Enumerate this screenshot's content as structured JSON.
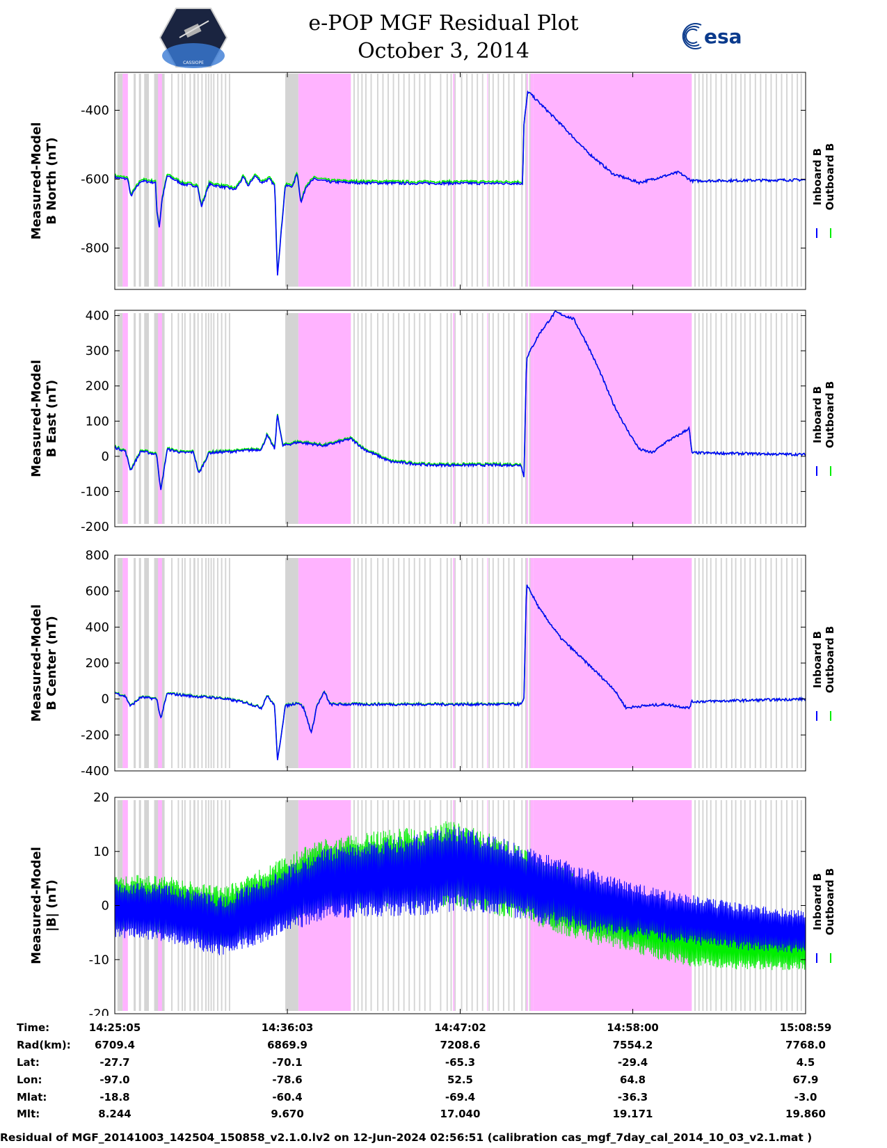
{
  "title": {
    "line1": "e-POP MGF Residual Plot",
    "line2": "October 3, 2014"
  },
  "logos": {
    "left": "cassiope-logo",
    "left_text": "CASSIOPE",
    "right": "esa-logo",
    "right_text": "esa"
  },
  "colors": {
    "inboard": "#0000ff",
    "outboard": "#00ee00",
    "gray_band": "#d4d4d4",
    "pink_band": "#ffb3ff"
  },
  "legend": {
    "inboard": "Inboard B",
    "outboard": "Outboard B"
  },
  "time_axis": {
    "start_s": 0,
    "end_s": 2634,
    "ticks_s": [
      0,
      658,
      1317,
      1975,
      2634
    ]
  },
  "bands": {
    "gray": [
      [
        10,
        30
      ],
      [
        72,
        80
      ],
      [
        92,
        100
      ],
      [
        112,
        130
      ],
      [
        150,
        190
      ],
      [
        215,
        220
      ],
      [
        240,
        245
      ],
      [
        255,
        260
      ],
      [
        265,
        270
      ],
      [
        285,
        290
      ],
      [
        300,
        307
      ],
      [
        315,
        320
      ],
      [
        330,
        335
      ],
      [
        345,
        350
      ],
      [
        355,
        360
      ],
      [
        365,
        370
      ],
      [
        375,
        380
      ],
      [
        390,
        395
      ],
      [
        405,
        410
      ],
      [
        420,
        425
      ],
      [
        435,
        440
      ],
      [
        650,
        700
      ],
      [
        720,
        725
      ],
      [
        740,
        745
      ],
      [
        760,
        765
      ],
      [
        780,
        785
      ],
      [
        800,
        805
      ],
      [
        820,
        825
      ],
      [
        830,
        835
      ],
      [
        845,
        850
      ],
      [
        865,
        870
      ],
      [
        880,
        885
      ],
      [
        895,
        900
      ],
      [
        910,
        915
      ],
      [
        925,
        930
      ],
      [
        940,
        945
      ],
      [
        955,
        960
      ],
      [
        975,
        980
      ],
      [
        1000,
        1005
      ],
      [
        1020,
        1025
      ],
      [
        1040,
        1045
      ],
      [
        1060,
        1065
      ],
      [
        1080,
        1085
      ],
      [
        1100,
        1105
      ],
      [
        1120,
        1125
      ],
      [
        1140,
        1145
      ],
      [
        1160,
        1165
      ],
      [
        1180,
        1185
      ],
      [
        1200,
        1205
      ],
      [
        1240,
        1245
      ],
      [
        1265,
        1270
      ],
      [
        1280,
        1285
      ],
      [
        1295,
        1300
      ],
      [
        1320,
        1325
      ],
      [
        1340,
        1345
      ],
      [
        1360,
        1365
      ],
      [
        1380,
        1385
      ],
      [
        1400,
        1405
      ],
      [
        1425,
        1430
      ],
      [
        1440,
        1445
      ],
      [
        1460,
        1465
      ],
      [
        1480,
        1485
      ],
      [
        1500,
        1505
      ],
      [
        1520,
        1525
      ],
      [
        1550,
        1555
      ],
      [
        1565,
        1570
      ],
      [
        1580,
        1585
      ],
      [
        2190,
        2198
      ],
      [
        2210,
        2215
      ],
      [
        2225,
        2230
      ],
      [
        2240,
        2245
      ],
      [
        2255,
        2260
      ],
      [
        2270,
        2275
      ],
      [
        2290,
        2295
      ],
      [
        2310,
        2315
      ],
      [
        2330,
        2335
      ],
      [
        2350,
        2355
      ],
      [
        2365,
        2370
      ],
      [
        2385,
        2390
      ],
      [
        2400,
        2405
      ],
      [
        2420,
        2425
      ],
      [
        2440,
        2445
      ],
      [
        2460,
        2465
      ],
      [
        2480,
        2485
      ],
      [
        2500,
        2505
      ],
      [
        2520,
        2525
      ],
      [
        2540,
        2545
      ],
      [
        2560,
        2565
      ],
      [
        2580,
        2585
      ],
      [
        2600,
        2605
      ],
      [
        2615,
        2620
      ]
    ],
    "pink": [
      [
        30,
        50
      ],
      [
        165,
        180
      ],
      [
        700,
        760
      ],
      [
        760,
        900
      ],
      [
        1290,
        1295
      ],
      [
        1420,
        1423
      ],
      [
        1570,
        1575
      ],
      [
        1585,
        1595
      ],
      [
        1595,
        2200
      ]
    ]
  },
  "series_meta": {
    "seed": 7
  },
  "chart_data": [
    {
      "type": "line",
      "ylabel": "Measured-Model B North (nT)",
      "ylabel_lines": [
        "Measured-Model",
        "B North (nT)"
      ],
      "ylim": [
        -920,
        -290
      ],
      "yticks": [
        -400,
        -600,
        -800
      ],
      "series": [
        {
          "name": "Inboard B"
        },
        {
          "name": "Outboard B"
        }
      ],
      "key_points": [
        [
          0,
          -595
        ],
        [
          50,
          -600
        ],
        [
          60,
          -650
        ],
        [
          100,
          -605
        ],
        [
          155,
          -610
        ],
        [
          160,
          -690
        ],
        [
          170,
          -740
        ],
        [
          180,
          -660
        ],
        [
          200,
          -590
        ],
        [
          260,
          -615
        ],
        [
          315,
          -620
        ],
        [
          330,
          -680
        ],
        [
          360,
          -615
        ],
        [
          460,
          -630
        ],
        [
          490,
          -595
        ],
        [
          510,
          -620
        ],
        [
          525,
          -600
        ],
        [
          535,
          -590
        ],
        [
          560,
          -610
        ],
        [
          590,
          -600
        ],
        [
          610,
          -620
        ],
        [
          620,
          -880
        ],
        [
          650,
          -620
        ],
        [
          680,
          -620
        ],
        [
          695,
          -580
        ],
        [
          710,
          -670
        ],
        [
          730,
          -620
        ],
        [
          760,
          -600
        ],
        [
          820,
          -608
        ],
        [
          900,
          -610
        ],
        [
          1100,
          -612
        ],
        [
          1300,
          -612
        ],
        [
          1555,
          -612
        ],
        [
          1560,
          -440
        ],
        [
          1575,
          -345
        ],
        [
          1700,
          -440
        ],
        [
          1800,
          -520
        ],
        [
          1900,
          -585
        ],
        [
          2000,
          -610
        ],
        [
          2050,
          -600
        ],
        [
          2150,
          -580
        ],
        [
          2200,
          -605
        ],
        [
          2634,
          -602
        ]
      ],
      "inboard_outboard_offset": 5
    },
    {
      "type": "line",
      "ylabel": "Measured-Model B East (nT)",
      "ylabel_lines": [
        "Measured-Model",
        "B East (nT)"
      ],
      "ylim": [
        -200,
        415
      ],
      "yticks": [
        400,
        300,
        200,
        100,
        0,
        -100,
        -200
      ],
      "series": [
        {
          "name": "Inboard B"
        },
        {
          "name": "Outboard B"
        }
      ],
      "key_points": [
        [
          0,
          25
        ],
        [
          40,
          15
        ],
        [
          60,
          -40
        ],
        [
          100,
          15
        ],
        [
          160,
          5
        ],
        [
          175,
          -100
        ],
        [
          200,
          20
        ],
        [
          260,
          10
        ],
        [
          300,
          12
        ],
        [
          320,
          -50
        ],
        [
          360,
          10
        ],
        [
          480,
          15
        ],
        [
          560,
          20
        ],
        [
          580,
          60
        ],
        [
          610,
          20
        ],
        [
          620,
          120
        ],
        [
          640,
          30
        ],
        [
          700,
          40
        ],
        [
          750,
          35
        ],
        [
          800,
          30
        ],
        [
          850,
          40
        ],
        [
          900,
          50
        ],
        [
          950,
          20
        ],
        [
          1050,
          -15
        ],
        [
          1200,
          -25
        ],
        [
          1550,
          -25
        ],
        [
          1560,
          -60
        ],
        [
          1570,
          280
        ],
        [
          1620,
          350
        ],
        [
          1680,
          410
        ],
        [
          1750,
          390
        ],
        [
          1800,
          320
        ],
        [
          1850,
          240
        ],
        [
          1900,
          150
        ],
        [
          1950,
          80
        ],
        [
          2000,
          20
        ],
        [
          2050,
          10
        ],
        [
          2100,
          40
        ],
        [
          2150,
          60
        ],
        [
          2190,
          80
        ],
        [
          2200,
          10
        ],
        [
          2634,
          5
        ]
      ],
      "inboard_outboard_offset": 3
    },
    {
      "type": "line",
      "ylabel": "Measured-Model B Center (nT)",
      "ylabel_lines": [
        "Measured-Model",
        "B Center (nT)"
      ],
      "ylim": [
        -400,
        800
      ],
      "yticks": [
        800,
        600,
        400,
        200,
        0,
        -200,
        -400
      ],
      "series": [
        {
          "name": "Inboard B"
        },
        {
          "name": "Outboard B"
        }
      ],
      "key_points": [
        [
          0,
          35
        ],
        [
          40,
          15
        ],
        [
          60,
          -40
        ],
        [
          100,
          10
        ],
        [
          160,
          0
        ],
        [
          175,
          -110
        ],
        [
          200,
          30
        ],
        [
          300,
          15
        ],
        [
          400,
          5
        ],
        [
          500,
          -20
        ],
        [
          560,
          -50
        ],
        [
          580,
          20
        ],
        [
          610,
          -40
        ],
        [
          620,
          -350
        ],
        [
          650,
          -40
        ],
        [
          700,
          -20
        ],
        [
          720,
          -50
        ],
        [
          750,
          -190
        ],
        [
          770,
          -40
        ],
        [
          800,
          40
        ],
        [
          820,
          -30
        ],
        [
          1000,
          -30
        ],
        [
          1200,
          -30
        ],
        [
          1550,
          -30
        ],
        [
          1560,
          0
        ],
        [
          1570,
          640
        ],
        [
          1620,
          500
        ],
        [
          1700,
          340
        ],
        [
          1800,
          200
        ],
        [
          1900,
          60
        ],
        [
          1950,
          -50
        ],
        [
          2000,
          -40
        ],
        [
          2100,
          -30
        ],
        [
          2190,
          -50
        ],
        [
          2200,
          -15
        ],
        [
          2634,
          0
        ]
      ],
      "inboard_outboard_offset": 3
    },
    {
      "type": "line",
      "ylabel": "Measured-Model |B| (nT)",
      "ylabel_lines": [
        "Measured-Model",
        "|B| (nT)"
      ],
      "ylim": [
        -20,
        20
      ],
      "yticks": [
        20,
        10,
        0,
        -10,
        -20
      ],
      "series": [
        {
          "name": "Inboard B"
        },
        {
          "name": "Outboard B"
        }
      ],
      "envelope_center": [
        [
          0,
          -1
        ],
        [
          100,
          -1
        ],
        [
          200,
          -1.5
        ],
        [
          300,
          -2.5
        ],
        [
          420,
          -4
        ],
        [
          600,
          0
        ],
        [
          800,
          4
        ],
        [
          1000,
          5
        ],
        [
          1200,
          6
        ],
        [
          1300,
          7
        ],
        [
          1500,
          5
        ],
        [
          1800,
          1
        ],
        [
          2100,
          -2
        ],
        [
          2400,
          -4
        ],
        [
          2634,
          -5
        ]
      ],
      "envelope_halfwidth": [
        [
          0,
          5
        ],
        [
          600,
          6
        ],
        [
          1300,
          8
        ],
        [
          2000,
          5
        ],
        [
          2634,
          4
        ]
      ],
      "outboard_shift": [
        [
          0,
          1.5
        ],
        [
          800,
          2
        ],
        [
          1300,
          1
        ],
        [
          1800,
          -2
        ],
        [
          2200,
          -4
        ],
        [
          2634,
          -3
        ]
      ]
    }
  ],
  "info_table": {
    "labels": [
      "Time:",
      "Rad(km):",
      "Lat:",
      "Lon:",
      "Mlat:",
      "Mlt:"
    ],
    "columns": [
      [
        "14:25:05",
        "6709.4",
        "-27.7",
        "-97.0",
        "-18.8",
        "8.244"
      ],
      [
        "14:36:03",
        "6869.9",
        "-70.1",
        "-78.6",
        "-60.4",
        "9.670"
      ],
      [
        "14:47:02",
        "7208.6",
        "-65.3",
        "52.5",
        "-69.4",
        "17.040"
      ],
      [
        "14:58:00",
        "7554.2",
        "-29.4",
        "64.8",
        "-36.3",
        "19.171"
      ],
      [
        "15:08:59",
        "7768.0",
        "4.5",
        "67.9",
        "-3.0",
        "19.860"
      ]
    ]
  },
  "footer": "Residual of MGF_20141003_142504_150858_v2.1.0.lv2 on 12-Jun-2024 02:56:51 (calibration cas_mgf_7day_cal_2014_10_03_v2.1.mat )"
}
